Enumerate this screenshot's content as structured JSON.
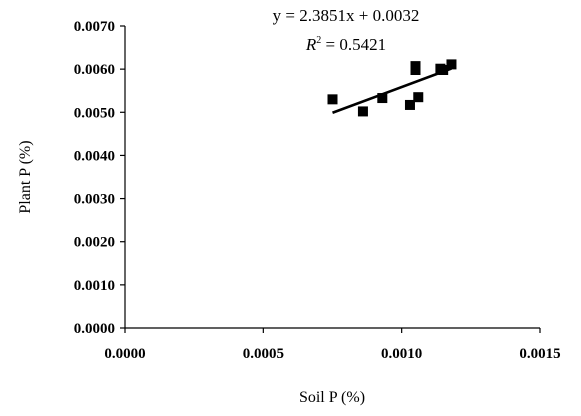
{
  "chart_data": {
    "type": "scatter",
    "xlabel": "Soil P (%)",
    "ylabel": "Plant P (%)",
    "xlim": [
      0,
      0.0015
    ],
    "ylim": [
      0,
      0.007
    ],
    "x_ticks": [
      "0.0000",
      "0.0005",
      "0.0010",
      "0.0015"
    ],
    "y_ticks": [
      "0.0000",
      "0.0010",
      "0.0020",
      "0.0030",
      "0.0040",
      "0.0050",
      "0.0060",
      "0.0070"
    ],
    "grid": false,
    "series": [
      {
        "marker": "square",
        "color": "#000000",
        "points": [
          {
            "x": 0.00075,
            "y": 0.0053
          },
          {
            "x": 0.00086,
            "y": 0.00502
          },
          {
            "x": 0.00093,
            "y": 0.00533
          },
          {
            "x": 0.00103,
            "y": 0.00517
          },
          {
            "x": 0.00105,
            "y": 0.00607
          },
          {
            "x": 0.00105,
            "y": 0.00598
          },
          {
            "x": 0.00106,
            "y": 0.00535
          },
          {
            "x": 0.00114,
            "y": 0.00601
          },
          {
            "x": 0.00115,
            "y": 0.00598
          },
          {
            "x": 0.00118,
            "y": 0.00611
          }
        ]
      }
    ],
    "trendline": {
      "slope": 2.3851,
      "intercept": 0.0032,
      "x_range": [
        0.00075,
        0.00118
      ],
      "equation_label": "y = 2.3851x + 0.0032",
      "r2_symbol": "R",
      "r2_superscript": "2",
      "r2_value": " = 0.5421"
    }
  }
}
